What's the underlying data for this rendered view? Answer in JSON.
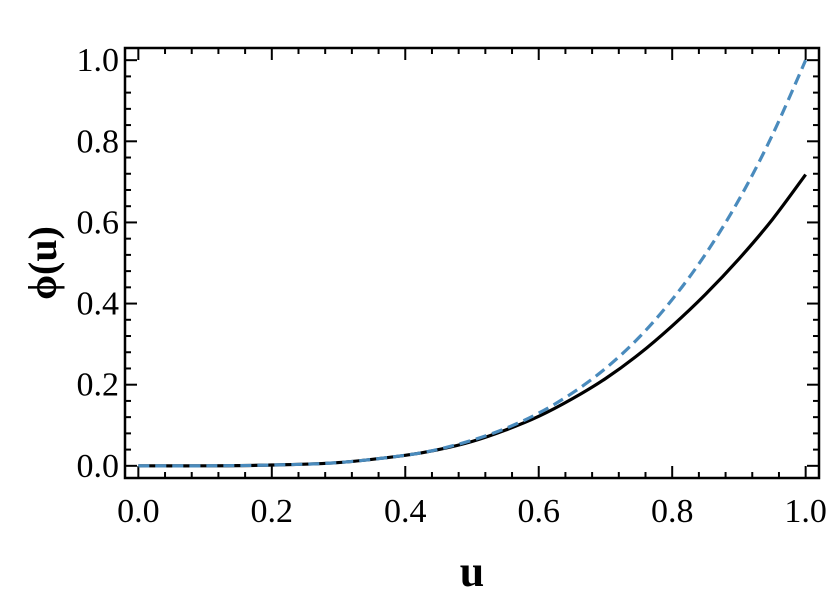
{
  "chart_data": {
    "type": "line",
    "title": "",
    "xlabel": "u",
    "ylabel": "ϕ(u)",
    "xlim": [
      -0.02,
      1.02
    ],
    "ylim": [
      -0.03,
      1.03
    ],
    "xticks": [
      0.0,
      0.2,
      0.4,
      0.6,
      0.8,
      1.0
    ],
    "xtick_labels": [
      "0.0",
      "0.2",
      "0.4",
      "0.6",
      "0.8",
      "1.0"
    ],
    "yticks": [
      0.0,
      0.2,
      0.4,
      0.6,
      0.8,
      1.0
    ],
    "ytick_labels": [
      "0.0",
      "0.2",
      "0.4",
      "0.6",
      "0.8",
      "1.0"
    ],
    "grid": false,
    "legend": "none",
    "series": [
      {
        "style": "solid",
        "color": "#000000",
        "x": [
          0.0,
          0.1,
          0.2,
          0.3,
          0.4,
          0.45,
          0.5,
          0.55,
          0.6,
          0.65,
          0.7,
          0.75,
          0.8,
          0.85,
          0.9,
          0.95,
          1.0
        ],
        "y": [
          0.0,
          0.0,
          0.002,
          0.008,
          0.026,
          0.04,
          0.06,
          0.088,
          0.122,
          0.165,
          0.215,
          0.275,
          0.345,
          0.423,
          0.51,
          0.607,
          0.718
        ]
      },
      {
        "style": "dashed",
        "color": "#4a8bbd",
        "x": [
          0.0,
          0.1,
          0.2,
          0.3,
          0.4,
          0.45,
          0.5,
          0.55,
          0.6,
          0.65,
          0.7,
          0.75,
          0.8,
          0.85,
          0.9,
          0.95,
          1.0
        ],
        "y": [
          0.0,
          0.0,
          0.002,
          0.008,
          0.026,
          0.041,
          0.063,
          0.092,
          0.13,
          0.179,
          0.24,
          0.316,
          0.41,
          0.522,
          0.656,
          0.815,
          1.0
        ]
      }
    ]
  }
}
